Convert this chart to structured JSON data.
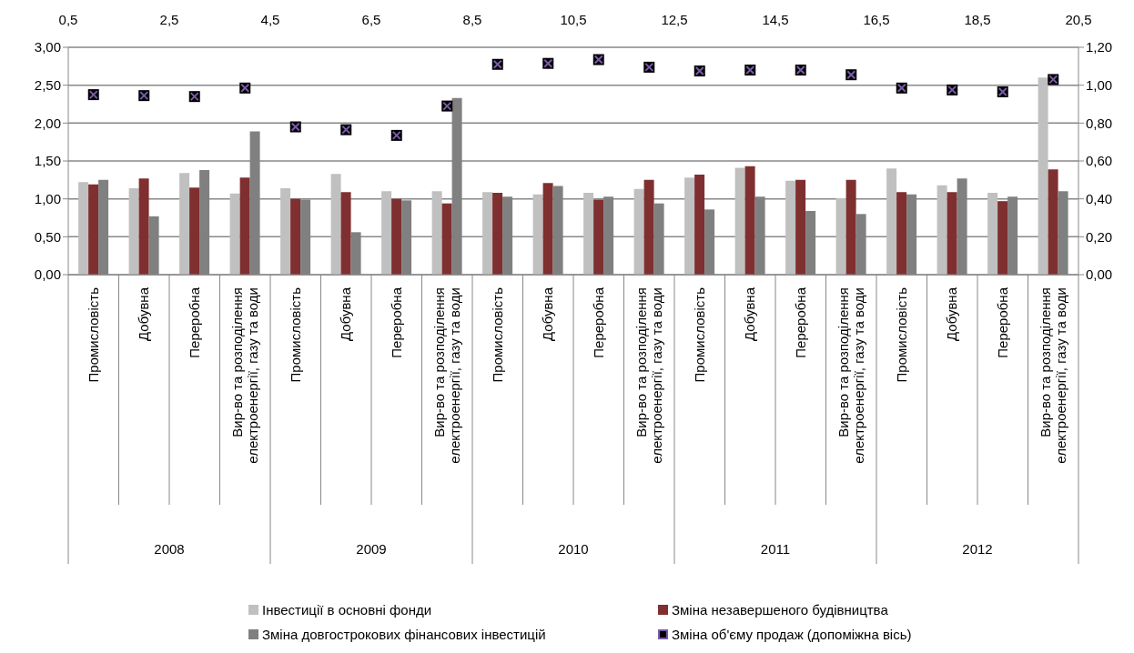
{
  "chart_data": {
    "type": "bar",
    "categories": [
      "Промисловість",
      "Добувна",
      "Переробна",
      "Вир-во та розподілення електроенергії, газу та води",
      "Промисловість",
      "Добувна",
      "Переробна",
      "Вир-во та розподілення електроенергії, газу та води",
      "Промисловість",
      "Добувна",
      "Переробна",
      "Вир-во та розподілення електроенергії, газу та води",
      "Промисловість",
      "Добувна",
      "Переробна",
      "Вир-во та розподілення електроенергії, газу та води",
      "Промисловість",
      "Добувна",
      "Переробна",
      "Вир-во та розподілення електроенергії, газу та води"
    ],
    "annotations": [
      "2008",
      "2009",
      "2010",
      "2011",
      "2012"
    ],
    "series": [
      {
        "name": "Інвестиції в основні фонди",
        "color": "#c0c0c0",
        "values": [
          1.22,
          1.14,
          1.34,
          1.07,
          1.14,
          1.33,
          1.1,
          1.1,
          1.09,
          1.06,
          1.08,
          1.13,
          1.28,
          1.41,
          1.24,
          1.01,
          1.4,
          1.18,
          1.08,
          2.6
        ]
      },
      {
        "name": "Зміна незавершеного будівництва",
        "color": "#7f2f2f",
        "values": [
          1.19,
          1.27,
          1.15,
          1.28,
          1.0,
          1.09,
          1.0,
          0.94,
          1.08,
          1.21,
          0.99,
          1.25,
          1.32,
          1.43,
          1.25,
          1.25,
          1.09,
          1.09,
          0.97,
          1.39
        ]
      },
      {
        "name": "Зміна довгострокових фінансових інвестицій",
        "color": "#808080",
        "values": [
          1.25,
          0.77,
          1.38,
          1.89,
          0.99,
          0.56,
          0.98,
          2.33,
          1.03,
          1.17,
          1.03,
          0.94,
          0.86,
          1.03,
          0.84,
          0.8,
          1.06,
          1.27,
          1.03,
          1.1
        ]
      },
      {
        "name": "Зміна об'єму продаж (допоміжна вісь)",
        "type": "scatter",
        "axis": "y2",
        "marker": "cross",
        "color": "#7a5ca8",
        "values": [
          0.95,
          0.945,
          0.94,
          0.985,
          0.78,
          0.765,
          0.735,
          0.89,
          1.11,
          1.115,
          1.135,
          1.095,
          1.075,
          1.08,
          1.08,
          1.055,
          0.985,
          0.975,
          0.965,
          1.03
        ]
      }
    ],
    "ylim": [
      0,
      3
    ],
    "yticks": [
      {
        "value": 0,
        "label": "0,00"
      },
      {
        "value": 0.5,
        "label": "0,50"
      },
      {
        "value": 1,
        "label": "1,00"
      },
      {
        "value": 1.5,
        "label": "1,50"
      },
      {
        "value": 2,
        "label": "2,00"
      },
      {
        "value": 2.5,
        "label": "2,50"
      },
      {
        "value": 3,
        "label": "3,00"
      }
    ],
    "y2lim": [
      0,
      1.2
    ],
    "y2ticks": [
      {
        "value": 0,
        "label": "0,00"
      },
      {
        "value": 0.2,
        "label": "0,20"
      },
      {
        "value": 0.4,
        "label": "0,40"
      },
      {
        "value": 0.6,
        "label": "0,60"
      },
      {
        "value": 0.8,
        "label": "0,80"
      },
      {
        "value": 1,
        "label": "1,00"
      },
      {
        "value": 1.2,
        "label": "1,20"
      }
    ],
    "x2lim": [
      0.5,
      20.5
    ],
    "x2ticks": [
      {
        "value": 0.5,
        "label": "0,5"
      },
      {
        "value": 2.5,
        "label": "2,5"
      },
      {
        "value": 4.5,
        "label": "4,5"
      },
      {
        "value": 6.5,
        "label": "6,5"
      },
      {
        "value": 8.5,
        "label": "8,5"
      },
      {
        "value": 10.5,
        "label": "10,5"
      },
      {
        "value": 12.5,
        "label": "12,5"
      },
      {
        "value": 14.5,
        "label": "14,5"
      },
      {
        "value": 16.5,
        "label": "16,5"
      },
      {
        "value": 18.5,
        "label": "18,5"
      },
      {
        "value": 20.5,
        "label": "20,5"
      }
    ],
    "grid": "y",
    "legend": "bottom"
  }
}
